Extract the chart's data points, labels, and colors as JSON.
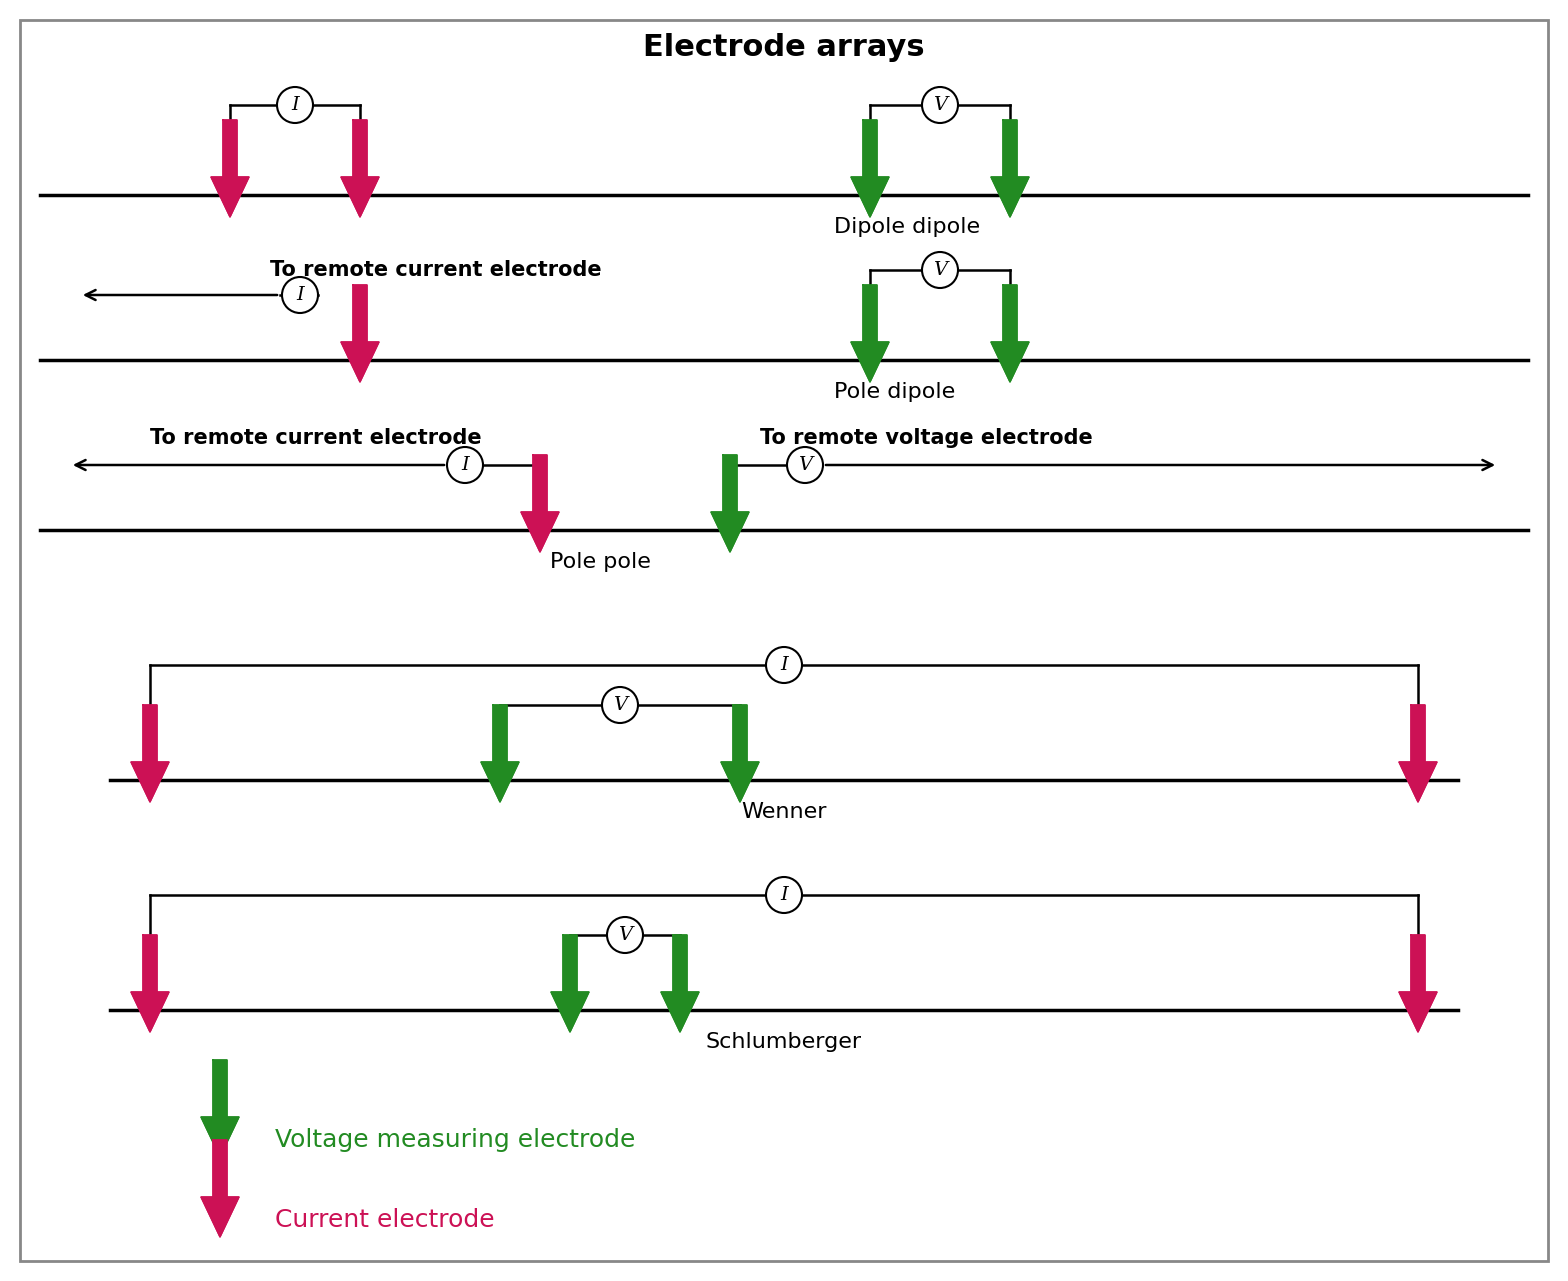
{
  "title": "Electrode arrays",
  "title_fontsize": 22,
  "current_color": "#CC1155",
  "voltage_color": "#228B22",
  "text_color": "#000000",
  "line_color": "#000000",
  "background_color": "#FFFFFF",
  "border_color": "#888888",
  "label_fontsize": 16,
  "remote_fontsize": 15,
  "legend_voltage_text": "Voltage measuring electrode",
  "legend_current_text": "Current electrode",
  "fig_width": 15.68,
  "fig_height": 12.81,
  "dpi": 100
}
